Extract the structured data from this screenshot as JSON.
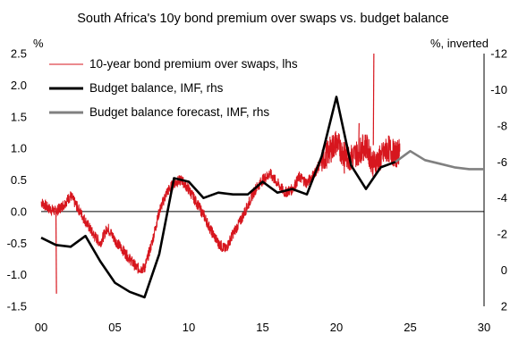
{
  "chart_data": {
    "type": "line",
    "title": "South Africa's 10y bond premium over swaps vs. budget balance",
    "left_axis": {
      "unit_label": "%",
      "ylim": [
        -1.5,
        2.5
      ],
      "ticks": [
        2.5,
        2.0,
        1.5,
        1.0,
        0.5,
        0.0,
        -0.5,
        -1.0,
        -1.5
      ],
      "tick_labels": [
        "2.5",
        "2.0",
        "1.5",
        "1.0",
        "0.5",
        "0.0",
        "-0.5",
        "-1.0",
        "-1.5"
      ]
    },
    "right_axis": {
      "unit_label": "%, inverted",
      "inverted": true,
      "ylim": [
        2,
        -12
      ],
      "ticks": [
        -12,
        -10,
        -8,
        -6,
        -4,
        -2,
        0,
        2
      ],
      "tick_labels": [
        "-12",
        "-10",
        "-8",
        "-6",
        "-4",
        "-2",
        "0",
        "2"
      ]
    },
    "x_axis": {
      "xlim": [
        2000,
        2030
      ],
      "ticks": [
        2000,
        2005,
        2010,
        2015,
        2020,
        2025,
        2030
      ],
      "tick_labels": [
        "00",
        "05",
        "10",
        "15",
        "20",
        "25",
        "30"
      ]
    },
    "legend_position": "top-left",
    "series": [
      {
        "name": "10-year bond premium over swaps, lhs",
        "axis": "left",
        "color": "#d7161e",
        "x": [
          2000.0,
          2000.5,
          2001.0,
          2001.5,
          2002.0,
          2002.5,
          2003.0,
          2003.5,
          2004.0,
          2004.5,
          2005.0,
          2005.5,
          2006.0,
          2006.5,
          2007.0,
          2007.5,
          2008.0,
          2008.5,
          2009.0,
          2009.5,
          2010.0,
          2010.5,
          2011.0,
          2011.5,
          2012.0,
          2012.5,
          2013.0,
          2013.5,
          2014.0,
          2014.5,
          2015.0,
          2015.5,
          2016.0,
          2016.5,
          2017.0,
          2017.5,
          2018.0,
          2018.5,
          2019.0,
          2019.5,
          2020.0,
          2020.5,
          2021.0,
          2021.5,
          2022.0,
          2022.5,
          2023.0,
          2023.5,
          2024.0,
          2024.3
        ],
        "y": [
          0.15,
          0.05,
          0.0,
          0.1,
          0.25,
          0.05,
          -0.15,
          -0.35,
          -0.5,
          -0.25,
          -0.45,
          -0.6,
          -0.75,
          -0.9,
          -0.9,
          -0.5,
          0.0,
          0.3,
          0.45,
          0.5,
          0.35,
          0.15,
          -0.05,
          -0.3,
          -0.5,
          -0.6,
          -0.35,
          -0.15,
          0.1,
          0.35,
          0.5,
          0.6,
          0.45,
          0.3,
          0.35,
          0.55,
          0.45,
          0.6,
          0.8,
          0.95,
          1.1,
          0.9,
          0.85,
          0.95,
          1.05,
          0.75,
          0.85,
          1.0,
          0.9,
          0.95
        ],
        "spikes": [
          {
            "x": 2001.0,
            "y": -1.3
          },
          {
            "x": 2022.5,
            "y": 2.5
          },
          {
            "x": 2020.5,
            "y": 0.6
          },
          {
            "x": 2021.5,
            "y": 1.4
          }
        ]
      },
      {
        "name": "Budget balance, IMF, rhs",
        "axis": "right",
        "color": "#000000",
        "x": [
          2000,
          2001,
          2002,
          2003,
          2004,
          2005,
          2006,
          2007,
          2008,
          2009,
          2010,
          2011,
          2012,
          2013,
          2014,
          2015,
          2016,
          2017,
          2018,
          2019,
          2020,
          2021,
          2022,
          2023,
          2024
        ],
        "y": [
          -1.8,
          -1.4,
          -1.3,
          -1.9,
          -0.5,
          0.7,
          1.2,
          1.5,
          -0.9,
          -5.1,
          -4.9,
          -4.0,
          -4.3,
          -4.2,
          -4.2,
          -4.9,
          -4.3,
          -4.5,
          -4.2,
          -6.3,
          -9.6,
          -5.8,
          -4.5,
          -5.7,
          -6.0
        ]
      },
      {
        "name": "Budget balance forecast, IMF, rhs",
        "axis": "right",
        "color": "#808080",
        "x": [
          2024,
          2025,
          2026,
          2027,
          2028,
          2029,
          2030
        ],
        "y": [
          -6.0,
          -6.6,
          -6.1,
          -5.9,
          -5.7,
          -5.6,
          -5.6
        ]
      }
    ]
  }
}
